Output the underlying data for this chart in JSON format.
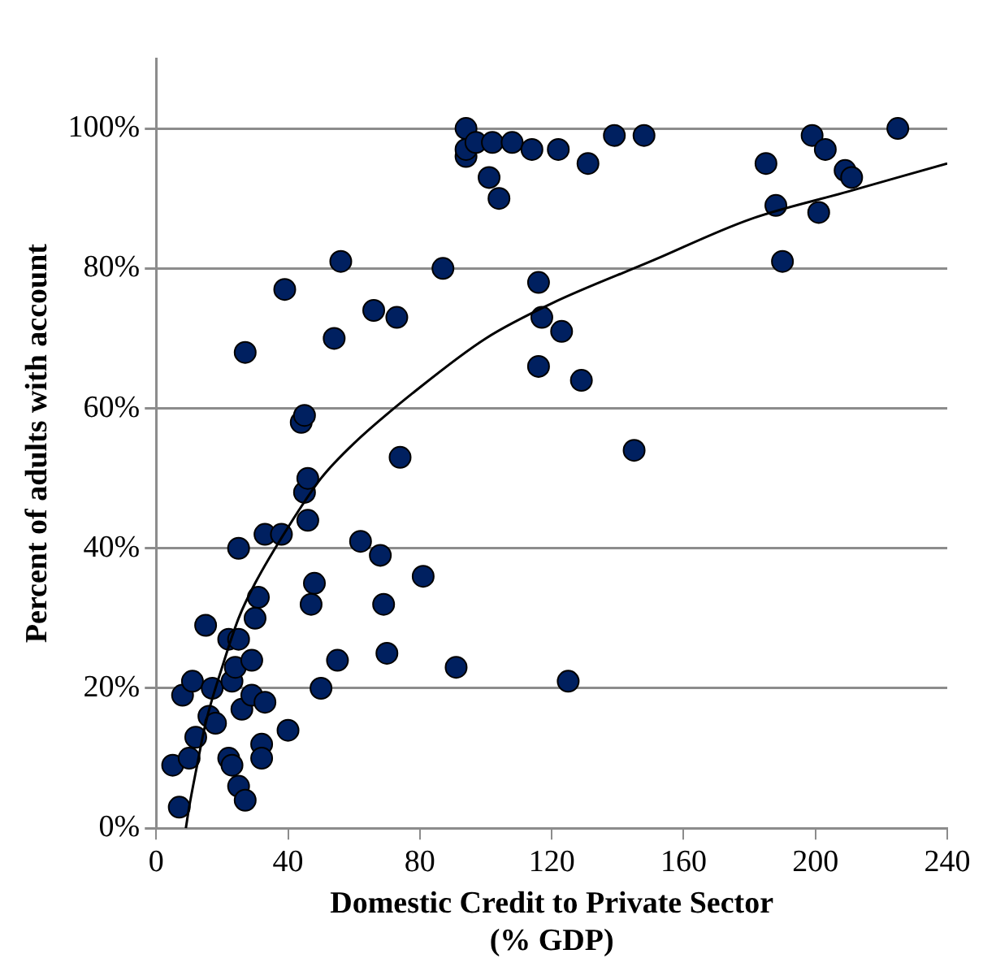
{
  "chart_data": {
    "type": "scatter",
    "xlabel": "Domestic Credit to Private Sector\n(% GDP)",
    "ylabel": "Percent of adults with account",
    "xlim": [
      0,
      240
    ],
    "xticks": [
      0,
      40,
      80,
      120,
      160,
      200,
      240
    ],
    "ylim": [
      0,
      110
    ],
    "yticks": [
      {
        "value": 0,
        "label": "0%"
      },
      {
        "value": 20,
        "label": "20%"
      },
      {
        "value": 40,
        "label": "40%"
      },
      {
        "value": 60,
        "label": "60%"
      },
      {
        "value": 80,
        "label": "80%"
      },
      {
        "value": 100,
        "label": "100%"
      }
    ],
    "grid": "y",
    "marker": "circle",
    "legend": false,
    "series": [
      {
        "color": "#002060",
        "x": [
          5,
          7,
          8,
          10,
          11,
          12,
          15,
          16,
          17,
          18,
          22,
          22,
          23,
          23,
          24,
          25,
          25,
          25,
          26,
          27,
          27,
          29,
          29,
          30,
          31,
          32,
          32,
          33,
          33,
          38,
          39,
          40,
          44,
          45,
          45,
          46,
          46,
          47,
          48,
          50,
          54,
          55,
          56,
          62,
          66,
          68,
          69,
          70,
          73,
          74,
          81,
          87,
          91,
          94,
          94,
          94,
          97,
          101,
          102,
          104,
          108,
          114,
          116,
          116,
          117,
          122,
          123,
          125,
          129,
          131,
          139,
          145,
          148,
          185,
          188,
          190,
          199,
          201,
          203,
          209,
          211,
          225
        ],
        "values": [
          9,
          3,
          19,
          10,
          21,
          13,
          29,
          16,
          20,
          15,
          27,
          10,
          21,
          9,
          23,
          6,
          27,
          40,
          17,
          68,
          4,
          19,
          24,
          30,
          33,
          12,
          10,
          18,
          42,
          42,
          77,
          14,
          58,
          59,
          48,
          50,
          44,
          32,
          35,
          20,
          70,
          24,
          81,
          41,
          74,
          39,
          32,
          25,
          73,
          53,
          36,
          80,
          23,
          100,
          96,
          97,
          98,
          93,
          98,
          90,
          98,
          97,
          66,
          78,
          73,
          97,
          71,
          21,
          64,
          95,
          99,
          54,
          99,
          95,
          89,
          81,
          99,
          88,
          97,
          94,
          93,
          100
        ]
      },
      {
        "type": "line",
        "color": "#000000",
        "marker": "none",
        "x": [
          9,
          10,
          12,
          15,
          20,
          25,
          30,
          40,
          50,
          60,
          80,
          100,
          120,
          150,
          180,
          210,
          240
        ],
        "values": [
          0,
          3,
          8,
          15,
          23,
          30,
          35,
          43,
          50,
          55,
          63,
          70,
          75,
          81,
          87,
          91,
          95
        ]
      }
    ]
  }
}
